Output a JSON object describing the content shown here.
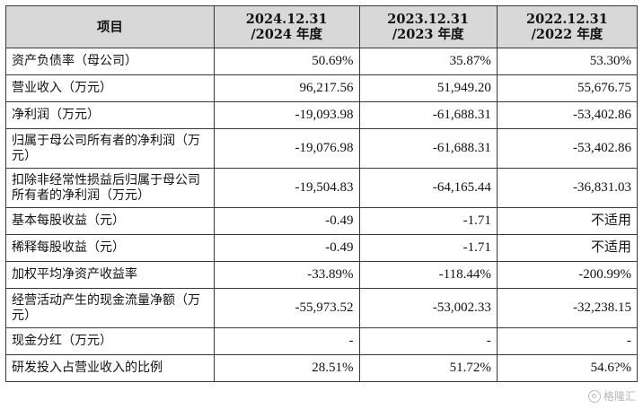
{
  "table": {
    "header": {
      "item": "项目",
      "col_2024_line1": "2024.12.31",
      "col_2024_line2": "/2024 年度",
      "col_2023_line1": "2023.12.31",
      "col_2023_line2": "/2023 年度",
      "col_2022_line1": "2022.12.31",
      "col_2022_line2": "/2022 年度"
    },
    "rows": [
      {
        "label": "资产负债率（母公司）",
        "y2024": "50.69%",
        "y2023": "35.87%",
        "y2022": "53.30%"
      },
      {
        "label": "营业收入（万元）",
        "y2024": "96,217.56",
        "y2023": "51,949.20",
        "y2022": "55,676.75"
      },
      {
        "label": "净利润（万元）",
        "y2024": "-19,093.98",
        "y2023": "-61,688.31",
        "y2022": "-53,402.86"
      },
      {
        "label": "归属于母公司所有者的净利润（万元）",
        "y2024": "-19,076.98",
        "y2023": "-61,688.31",
        "y2022": "-53,402.86"
      },
      {
        "label": "扣除非经常性损益后归属于母公司所有者的净利润（万元）",
        "y2024": "-19,504.83",
        "y2023": "-64,165.44",
        "y2022": "-36,831.03"
      },
      {
        "label": "基本每股收益（元）",
        "y2024": "-0.49",
        "y2023": "-1.71",
        "y2022": "不适用"
      },
      {
        "label": "稀释每股收益（元）",
        "y2024": "-0.49",
        "y2023": "-1.71",
        "y2022": "不适用"
      },
      {
        "label": "加权平均净资产收益率",
        "y2024": "-33.89%",
        "y2023": "-118.44%",
        "y2022": "-200.99%"
      },
      {
        "label": "经营活动产生的现金流量净额（万元）",
        "y2024": "-55,973.52",
        "y2023": "-53,002.33",
        "y2022": "-32,238.15"
      },
      {
        "label": "现金分红（万元）",
        "y2024": "-",
        "y2023": "-",
        "y2022": "-"
      },
      {
        "label": "研发投入占营业收入的比例",
        "y2024": "28.51%",
        "y2023": "51.72%",
        "y2022": "54.6?%"
      }
    ]
  },
  "watermark": {
    "text": "格隆汇",
    "icon": "logo-icon"
  }
}
